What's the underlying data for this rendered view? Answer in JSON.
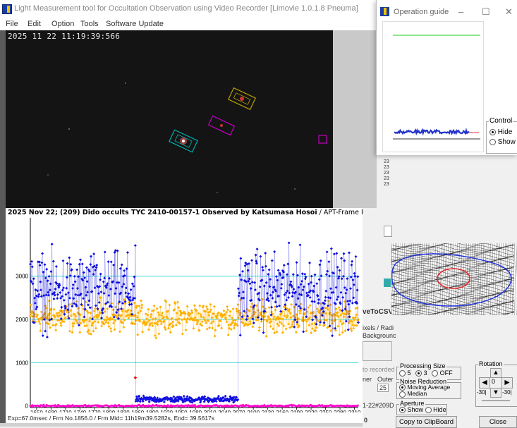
{
  "main_window": {
    "title": "Light Measurement tool for Occultation Observation using Video Recorder [Limovie 1.0.1.8 Pneuma]",
    "menu": [
      "File",
      "Edit",
      "Option",
      "Tools",
      "Software Update"
    ]
  },
  "video": {
    "timestamp": "2025 11 22 11:19:39:566"
  },
  "chart": {
    "title_bold": "2025 Nov 22; (209) Dido occults TYC 2410-00157-1 Observed by Katsumasa Hosoi",
    "title_rest": " / APT-Frame Photometry /",
    "footer": "Exp=67.0msec / Frm No.1856.0 / Frm Mid= 11h19m39.5282s,  End= 39.5617s"
  },
  "chart_data": {
    "type": "scatter",
    "xlim": [
      1637,
      2318
    ],
    "ylim": [
      -40,
      4350
    ],
    "x_ticks": [
      1650,
      1680,
      1710,
      1740,
      1770,
      1800,
      1830,
      1860,
      1890,
      1920,
      1950,
      1980,
      2010,
      2040,
      2070,
      2100,
      2130,
      2160,
      2190,
      2220,
      2250,
      2280,
      2310
    ],
    "y_ticks": [
      0,
      1000,
      2000,
      3000
    ],
    "event": {
      "disappearance_frame": 1855,
      "reappearance_frame": 2068
    },
    "series": [
      {
        "color": "#1010e0",
        "levels": [
          {
            "from": 1637,
            "to": 1855,
            "mean": 2650,
            "spread": 650
          },
          {
            "from": 1856,
            "to": 2068,
            "mean": 150,
            "spread": 55
          },
          {
            "from": 2069,
            "to": 2318,
            "mean": 2700,
            "spread": 650
          }
        ]
      },
      {
        "color": "#ffb000",
        "levels": [
          {
            "from": 1637,
            "to": 2318,
            "mean": 2050,
            "spread": 260
          }
        ]
      },
      {
        "color": "#ff00cc",
        "levels": [
          {
            "from": 1637,
            "to": 2318,
            "mean": 0,
            "spread": 15
          }
        ]
      }
    ]
  },
  "op_guide": {
    "title": "Operation guide",
    "control_label": "Control",
    "control_options": [
      "Hide",
      "Show"
    ],
    "control_selected": "Hide"
  },
  "right_panel": {
    "partial_rows": [
      "23",
      "23",
      "23",
      "23",
      "23"
    ],
    "save_csv_partial": "veToCSV",
    "pixels_partial": "ixels / Radi",
    "background_partial": "Backgrounc",
    "recorded_partial": "to recorded",
    "inner_partial": "ner",
    "outer_partial": "Outer",
    "outer_value": "25",
    "date_partial": "1-22#209D",
    "zero_partial": "0",
    "processing_size_label": "Processing Size",
    "processing_size_options": [
      "5",
      "3",
      "OFF"
    ],
    "processing_size_selected": "3",
    "noise_reduction_label": "Noise Reduction",
    "noise_reduction_options": [
      "Moving Average",
      "Median"
    ],
    "noise_reduction_selected": "Moving Average",
    "aperture_label": "Aperture",
    "aperture_options": [
      "Show",
      "Hide"
    ],
    "aperture_selected": "Show",
    "rotation_label": "Rotation",
    "rotation_value": "0",
    "rotation_left": "-30|",
    "rotation_right": "-30|",
    "copy_button": "Copy to ClipBoard",
    "close_button": "Close"
  }
}
